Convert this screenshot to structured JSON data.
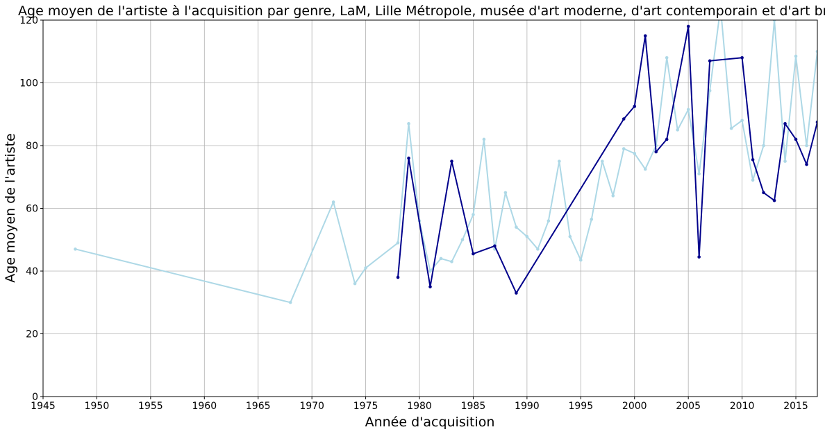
{
  "chart_data": {
    "type": "line",
    "title": "Age moyen de l'artiste à l'acquisition par genre, LaM, Lille Métropole, musée d'art moderne, d'art contemporain et d'art brut",
    "xlabel": "Année d'acquisition",
    "ylabel": "Age moyen de l'artiste",
    "xlim": [
      1945,
      2017
    ],
    "ylim": [
      0,
      120
    ],
    "xticks": [
      "1945",
      "1950",
      "1955",
      "1960",
      "1965",
      "1970",
      "1975",
      "1980",
      "1985",
      "1990",
      "1995",
      "2000",
      "2005",
      "2010",
      "2015"
    ],
    "yticks": [
      "0",
      "20",
      "40",
      "60",
      "80",
      "100",
      "120"
    ],
    "grid": true,
    "series": [
      {
        "color": "#add8e6",
        "x": [
          1948,
          1968,
          1972,
          1974,
          1975,
          1978,
          1979,
          1980,
          1981,
          1982,
          1983,
          1984,
          1985,
          1986,
          1987,
          1988,
          1989,
          1990,
          1991,
          1992,
          1993,
          1994,
          1995,
          1996,
          1997,
          1998,
          1999,
          2000,
          2001,
          2002,
          2003,
          2004,
          2005,
          2006,
          2007,
          2008,
          2009,
          2010,
          2011,
          2012,
          2013,
          2014,
          2015,
          2016,
          2017
        ],
        "y": [
          47,
          30,
          62,
          36,
          41,
          49,
          87,
          56,
          40,
          44,
          43,
          50,
          58,
          82,
          47,
          65,
          54,
          51,
          47,
          56,
          75,
          51,
          43.5,
          56.5,
          75,
          64,
          79,
          77.5,
          72.5,
          80,
          108,
          85,
          91.5,
          71,
          97.5,
          124,
          85.5,
          88,
          69,
          80,
          120,
          75,
          108.5,
          80,
          110
        ]
      },
      {
        "color": "#00008b",
        "x": [
          1978,
          1979,
          1981,
          1983,
          1985,
          1987,
          1989,
          1999,
          2000,
          2001,
          2002,
          2003,
          2005,
          2006,
          2007,
          2010,
          2011,
          2012,
          2013,
          2014,
          2015,
          2016,
          2017
        ],
        "y": [
          38,
          76,
          35,
          75,
          45.5,
          48,
          33,
          88.5,
          92.5,
          115,
          78,
          82,
          118,
          44.5,
          107,
          108,
          75.5,
          65,
          62.5,
          87,
          82,
          74,
          87.5
        ]
      }
    ]
  }
}
